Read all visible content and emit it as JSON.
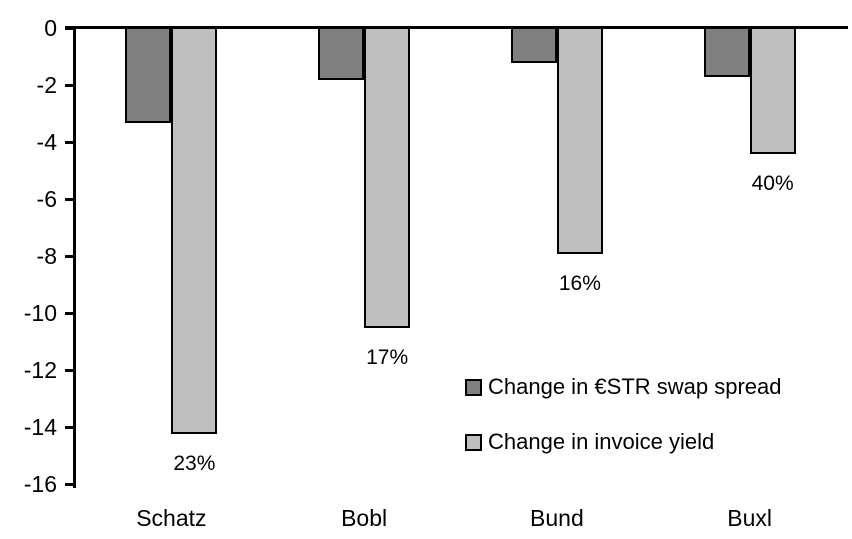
{
  "chart_data": {
    "type": "bar",
    "categories": [
      "Schatz",
      "Bobl",
      "Bund",
      "Buxl"
    ],
    "series": [
      {
        "name": "Change in €STR swap spread",
        "color": "#808080",
        "values": [
          -3.3,
          -1.8,
          -1.2,
          -1.7
        ]
      },
      {
        "name": "Change in invoice yield",
        "color": "#BFBFBF",
        "values": [
          -14.2,
          -10.5,
          -7.9,
          -4.4
        ],
        "point_labels": [
          "23%",
          "17%",
          "16%",
          "40%"
        ]
      }
    ],
    "yaxis": {
      "min": -16,
      "max": 0,
      "tick_step": -2,
      "tick_labels": [
        "0",
        "-2",
        "-4",
        "-6",
        "-8",
        "-10",
        "-12",
        "-14",
        "-16"
      ]
    },
    "grid": false,
    "legend_position": "inside-right-middle"
  }
}
